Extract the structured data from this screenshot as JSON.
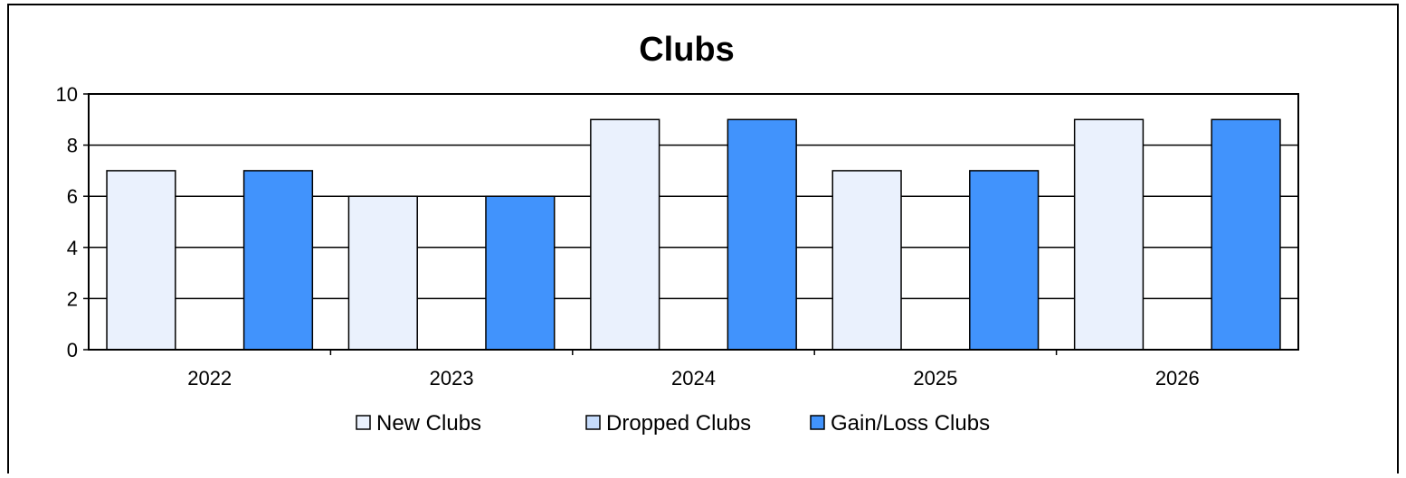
{
  "chart_data": {
    "type": "bar",
    "title": "Clubs",
    "xlabel": "",
    "ylabel": "",
    "categories": [
      "2022",
      "2023",
      "2024",
      "2025",
      "2026"
    ],
    "ylim": [
      0,
      10
    ],
    "yticks": [
      "0",
      "2",
      "4",
      "6",
      "8",
      "10"
    ],
    "grid": true,
    "legend_position": "bottom",
    "series": [
      {
        "name": "New Clubs",
        "values": [
          7,
          6,
          9,
          7,
          9
        ],
        "color": "#eaf1fd"
      },
      {
        "name": "Dropped Clubs",
        "values": [
          0,
          0,
          0,
          0,
          0
        ],
        "color": "#c6dcfc"
      },
      {
        "name": "Gain/Loss Clubs",
        "values": [
          7,
          6,
          9,
          7,
          9
        ],
        "color": "#4193fc"
      }
    ]
  }
}
